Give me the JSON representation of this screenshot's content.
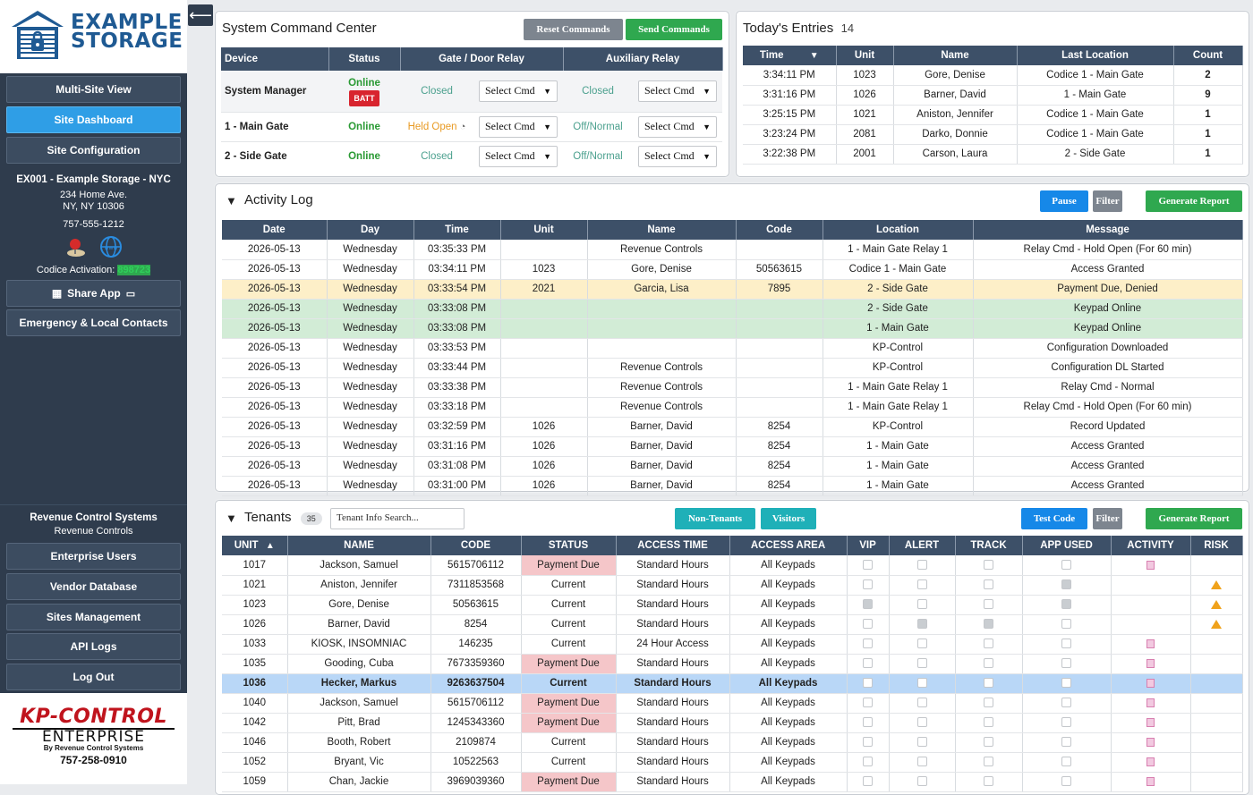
{
  "brand": {
    "line1": "EXAMPLE",
    "line2": "STORAGE"
  },
  "sidebar": {
    "top_buttons": [
      {
        "label": "Multi-Site View"
      },
      {
        "label": "Site Dashboard",
        "active": true
      },
      {
        "label": "Site Configuration"
      }
    ],
    "site": {
      "title": "EX001 - Example Storage - NYC",
      "address1": "234 Home Ave.",
      "address2": "NY, NY 10306",
      "phone": "757-555-1212",
      "activation_label": "Codice Activation: ",
      "activation_code": "898723"
    },
    "share_app": "Share App",
    "emergency": "Emergency & Local Contacts",
    "rc_title": "Revenue Control Systems",
    "rc_sub": "Revenue Controls",
    "bottom_buttons": [
      {
        "label": "Enterprise Users"
      },
      {
        "label": "Vendor Database"
      },
      {
        "label": "Sites Management"
      },
      {
        "label": "API Logs"
      },
      {
        "label": "Log Out"
      }
    ],
    "kp": {
      "line1": "KP-CONTROL",
      "line2": "ENTERPRISE",
      "line3": "By Revenue Control Systems",
      "phone": "757-258-0910"
    }
  },
  "command_center": {
    "title": "System Command Center",
    "reset": "Reset Commands",
    "send": "Send Commands",
    "headers": [
      "Device",
      "Status",
      "Gate / Door Relay",
      "",
      "Auxiliary Relay",
      ""
    ],
    "select_label": "Select Cmd",
    "rows": [
      {
        "device": "System Manager",
        "status": "Online",
        "batt": "BATT",
        "gate": "Closed",
        "aux": "Closed"
      },
      {
        "device": "1 - Main Gate",
        "status": "Online",
        "gate": "Held Open",
        "aux": "Off/Normal"
      },
      {
        "device": "2 - Side Gate",
        "status": "Online",
        "gate": "Closed",
        "aux": "Off/Normal"
      }
    ]
  },
  "entries": {
    "title": "Today's Entries",
    "count": "14",
    "headers": [
      "Time",
      "Unit",
      "Name",
      "Last Location",
      "Count"
    ],
    "rows": [
      [
        "3:34:11 PM",
        "1023",
        "Gore, Denise",
        "Codice 1 - Main Gate",
        "2"
      ],
      [
        "3:31:16 PM",
        "1026",
        "Barner, David",
        "1 - Main Gate",
        "9"
      ],
      [
        "3:25:15 PM",
        "1021",
        "Aniston, Jennifer",
        "Codice 1 - Main Gate",
        "1"
      ],
      [
        "3:23:24 PM",
        "2081",
        "Darko, Donnie",
        "Codice 1 - Main Gate",
        "1"
      ],
      [
        "3:22:38 PM",
        "2001",
        "Carson, Laura",
        "2 - Side Gate",
        "1"
      ]
    ]
  },
  "activity": {
    "title": "Activity Log",
    "pause": "Pause",
    "filter": "Filter",
    "report": "Generate Report",
    "headers": [
      "Date",
      "Day",
      "Time",
      "Unit",
      "Name",
      "Code",
      "Location",
      "Message"
    ],
    "rows": [
      {
        "c": [
          "2026-05-13",
          "Wednesday",
          "03:35:33 PM",
          "",
          "Revenue Controls",
          "",
          "1 - Main Gate Relay 1",
          "Relay Cmd - Hold Open (For 60 min)"
        ]
      },
      {
        "c": [
          "2026-05-13",
          "Wednesday",
          "03:34:11 PM",
          "1023",
          "Gore, Denise",
          "50563615",
          "Codice 1 - Main Gate",
          "Access Granted"
        ]
      },
      {
        "c": [
          "2026-05-13",
          "Wednesday",
          "03:33:54 PM",
          "2021",
          "Garcia, Lisa",
          "7895",
          "2 - Side Gate",
          "Payment Due, Denied"
        ],
        "cls": "warn"
      },
      {
        "c": [
          "2026-05-13",
          "Wednesday",
          "03:33:08 PM",
          "",
          "",
          "",
          "2 - Side Gate",
          "Keypad Online"
        ],
        "cls": "ok"
      },
      {
        "c": [
          "2026-05-13",
          "Wednesday",
          "03:33:08 PM",
          "",
          "",
          "",
          "1 - Main Gate",
          "Keypad Online"
        ],
        "cls": "ok"
      },
      {
        "c": [
          "2026-05-13",
          "Wednesday",
          "03:33:53 PM",
          "",
          "",
          "",
          "KP-Control",
          "Configuration Downloaded"
        ]
      },
      {
        "c": [
          "2026-05-13",
          "Wednesday",
          "03:33:44 PM",
          "",
          "Revenue Controls",
          "",
          "KP-Control",
          "Configuration DL Started"
        ]
      },
      {
        "c": [
          "2026-05-13",
          "Wednesday",
          "03:33:38 PM",
          "",
          "Revenue Controls",
          "",
          "1 - Main Gate Relay 1",
          "Relay Cmd - Normal"
        ]
      },
      {
        "c": [
          "2026-05-13",
          "Wednesday",
          "03:33:18 PM",
          "",
          "Revenue Controls",
          "",
          "1 - Main Gate Relay 1",
          "Relay Cmd - Hold Open (For 60 min)"
        ]
      },
      {
        "c": [
          "2026-05-13",
          "Wednesday",
          "03:32:59 PM",
          "1026",
          "Barner, David",
          "8254",
          "KP-Control",
          "Record Updated"
        ]
      },
      {
        "c": [
          "2026-05-13",
          "Wednesday",
          "03:31:16 PM",
          "1026",
          "Barner, David",
          "8254",
          "1 - Main Gate",
          "Access Granted"
        ]
      },
      {
        "c": [
          "2026-05-13",
          "Wednesday",
          "03:31:08 PM",
          "1026",
          "Barner, David",
          "8254",
          "1 - Main Gate",
          "Access Granted"
        ]
      },
      {
        "c": [
          "2026-05-13",
          "Wednesday",
          "03:31:00 PM",
          "1026",
          "Barner, David",
          "8254",
          "1 - Main Gate",
          "Access Granted"
        ]
      }
    ]
  },
  "tenants": {
    "title": "Tenants",
    "count": "35",
    "search_placeholder": "Tenant Info Search...",
    "non_tenants": "Non-Tenants",
    "visitors": "Visitors",
    "test_code": "Test Code",
    "filter": "Filter",
    "report": "Generate Report",
    "headers": [
      "UNIT",
      "NAME",
      "CODE",
      "STATUS",
      "ACCESS TIME",
      "ACCESS AREA",
      "VIP",
      "ALERT",
      "TRACK",
      "APP USED",
      "ACTIVITY",
      "RISK"
    ],
    "rows": [
      {
        "unit": "1017",
        "name": "Jackson, Samuel",
        "code": "5615706112",
        "status": "Payment Due",
        "time": "Standard Hours",
        "area": "All Keypads",
        "vip": false,
        "alert": false,
        "track": false,
        "app": false,
        "activity": true,
        "risk": false
      },
      {
        "unit": "1021",
        "name": "Aniston, Jennifer",
        "code": "7311853568",
        "status": "Current",
        "time": "Standard Hours",
        "area": "All Keypads",
        "vip": false,
        "alert": false,
        "track": false,
        "app": true,
        "activity": false,
        "risk": true
      },
      {
        "unit": "1023",
        "name": "Gore, Denise",
        "code": "50563615",
        "status": "Current",
        "time": "Standard Hours",
        "area": "All Keypads",
        "vip": true,
        "alert": false,
        "track": false,
        "app": true,
        "activity": false,
        "risk": true
      },
      {
        "unit": "1026",
        "name": "Barner, David",
        "code": "8254",
        "status": "Current",
        "time": "Standard Hours",
        "area": "All Keypads",
        "vip": false,
        "alert": true,
        "track": true,
        "app": false,
        "activity": false,
        "risk": true
      },
      {
        "unit": "1033",
        "name": "KIOSK, INSOMNIAC",
        "code": "146235",
        "status": "Current",
        "time": "24 Hour Access",
        "area": "All Keypads",
        "vip": false,
        "alert": false,
        "track": false,
        "app": false,
        "activity": true,
        "risk": false
      },
      {
        "unit": "1035",
        "name": "Gooding, Cuba",
        "code": "7673359360",
        "status": "Payment Due",
        "time": "Standard Hours",
        "area": "All Keypads",
        "vip": false,
        "alert": false,
        "track": false,
        "app": false,
        "activity": true,
        "risk": false
      },
      {
        "unit": "1036",
        "name": "Hecker, Markus",
        "code": "9263637504",
        "status": "Current",
        "time": "Standard Hours",
        "area": "All Keypads",
        "vip": false,
        "alert": false,
        "track": false,
        "app": false,
        "activity": true,
        "risk": false,
        "selected": true
      },
      {
        "unit": "1040",
        "name": "Jackson, Samuel",
        "code": "5615706112",
        "status": "Payment Due",
        "time": "Standard Hours",
        "area": "All Keypads",
        "vip": false,
        "alert": false,
        "track": false,
        "app": false,
        "activity": true,
        "risk": false
      },
      {
        "unit": "1042",
        "name": "Pitt, Brad",
        "code": "1245343360",
        "status": "Payment Due",
        "time": "Standard Hours",
        "area": "All Keypads",
        "vip": false,
        "alert": false,
        "track": false,
        "app": false,
        "activity": true,
        "risk": false
      },
      {
        "unit": "1046",
        "name": "Booth, Robert",
        "code": "2109874",
        "status": "Current",
        "time": "Standard Hours",
        "area": "All Keypads",
        "vip": false,
        "alert": false,
        "track": false,
        "app": false,
        "activity": true,
        "risk": false
      },
      {
        "unit": "1052",
        "name": "Bryant, Vic",
        "code": "10522563",
        "status": "Current",
        "time": "Standard Hours",
        "area": "All Keypads",
        "vip": false,
        "alert": false,
        "track": false,
        "app": false,
        "activity": true,
        "risk": false
      },
      {
        "unit": "1059",
        "name": "Chan, Jackie",
        "code": "3969039360",
        "status": "Payment Due",
        "time": "Standard Hours",
        "area": "All Keypads",
        "vip": false,
        "alert": false,
        "track": false,
        "app": false,
        "activity": true,
        "risk": false
      }
    ]
  }
}
